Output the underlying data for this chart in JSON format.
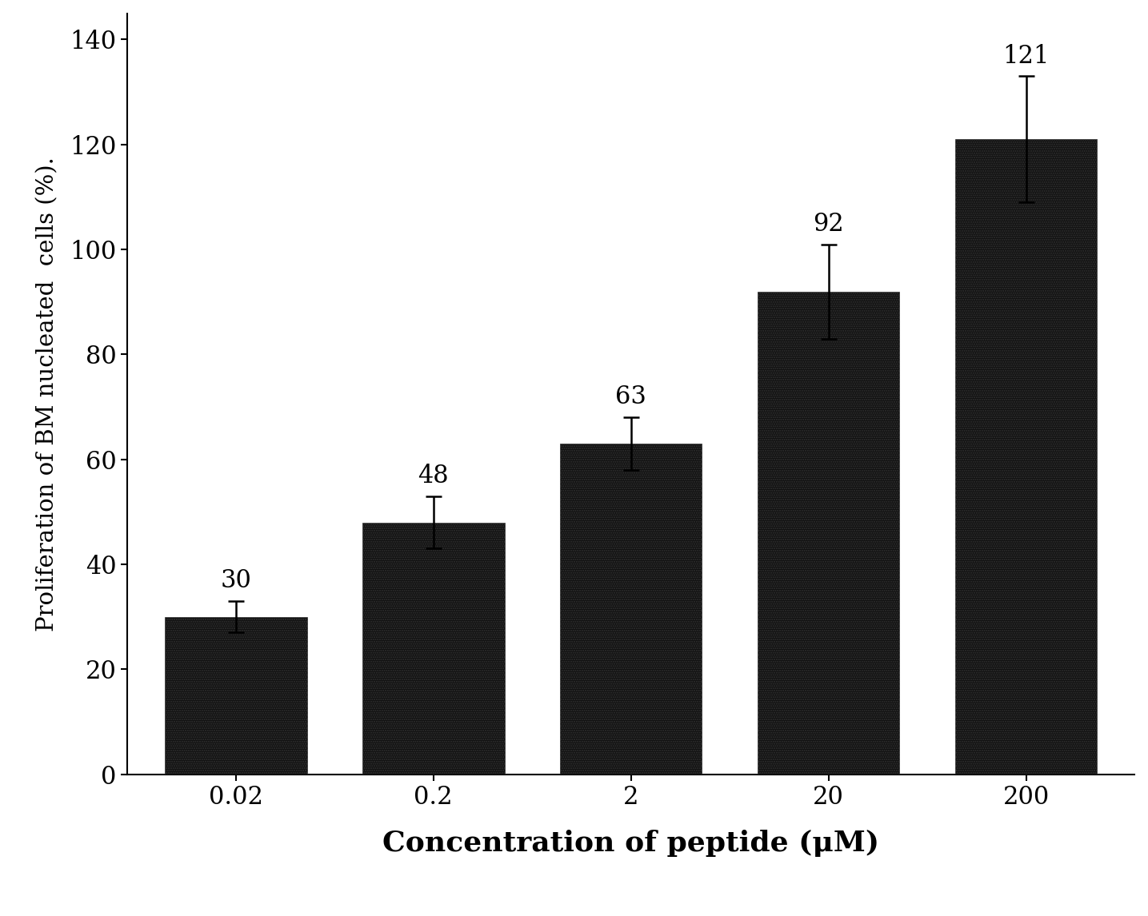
{
  "categories": [
    "0.02",
    "0.2",
    "2",
    "20",
    "200"
  ],
  "values": [
    30,
    48,
    63,
    92,
    121
  ],
  "errors": [
    3,
    5,
    5,
    9,
    12
  ],
  "bar_color": "#111111",
  "bar_width": 0.72,
  "xlabel": "Concentration of peptide (μM)",
  "ylabel": "Proliferation of BM nucleated  cells (%).",
  "ylim": [
    0,
    145
  ],
  "yticks": [
    0,
    20,
    40,
    60,
    80,
    100,
    120,
    140
  ],
  "xlabel_fontsize": 26,
  "ylabel_fontsize": 21,
  "tick_fontsize": 22,
  "label_fontsize": 22,
  "background_color": "#ffffff",
  "hatch": "......"
}
